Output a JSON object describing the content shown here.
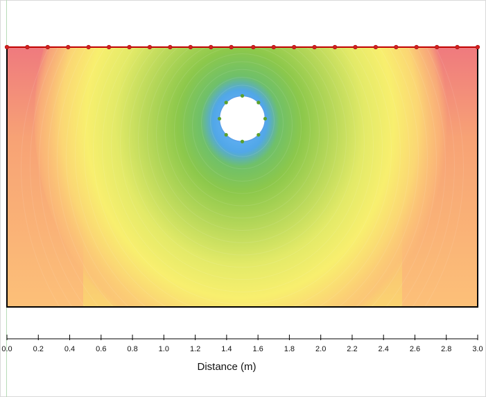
{
  "chart_data": {
    "type": "heatmap",
    "title": "",
    "xlabel": "Distance (m)",
    "ylabel": "",
    "xlim": [
      0.0,
      3.0
    ],
    "x_ticks": [
      0.0,
      0.2,
      0.4,
      0.6,
      0.8,
      1.0,
      1.2,
      1.4,
      1.6,
      1.8,
      2.0,
      2.2,
      2.4,
      2.6,
      2.8,
      3.0
    ],
    "x_tick_labels": [
      "0.0",
      "0.2",
      "0.4",
      "0.6",
      "0.8",
      "1.0",
      "1.2",
      "1.4",
      "1.6",
      "1.8",
      "2.0",
      "2.2",
      "2.4",
      "2.6",
      "2.8",
      "3.0"
    ],
    "domain": {
      "x_range": [
        0.0,
        3.0
      ],
      "depth_range": [
        0.0,
        1.67
      ]
    },
    "opening": {
      "shape": "circle",
      "center_x": 1.5,
      "center_depth": 0.46,
      "radius": 0.14
    },
    "surface_boundary_nodes_x": [
      0.0,
      0.13,
      0.26,
      0.39,
      0.52,
      0.65,
      0.78,
      0.91,
      1.04,
      1.17,
      1.3,
      1.43,
      1.57,
      1.7,
      1.83,
      1.96,
      2.09,
      2.22,
      2.35,
      2.48,
      2.61,
      2.74,
      2.87,
      3.0
    ],
    "opening_node_angles_deg": [
      0,
      45,
      90,
      135,
      180,
      225,
      270,
      315,
      360
    ],
    "colors": {
      "high": "#ef7a7e",
      "mid_high": "#fbbf78",
      "mid": "#f8ef6e",
      "mid_low": "#8cc84b",
      "low": "#4aa0f0",
      "boundary_line": "#c00000",
      "boundary_node": "#d42020",
      "opening_node": "#5aa02c"
    }
  }
}
